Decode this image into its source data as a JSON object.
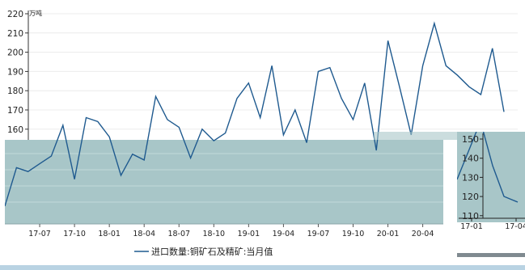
{
  "chart_data": {
    "type": "line",
    "unit": "万吨",
    "y_ticks": [
      220,
      210,
      200,
      190,
      180,
      170,
      160
    ],
    "ylim": [
      110,
      220
    ],
    "x_ticks": [
      "17-07",
      "17-10",
      "18-01",
      "18-04",
      "18-07",
      "18-10",
      "19-01",
      "19-04",
      "19-07",
      "19-10",
      "20-01",
      "20-04"
    ],
    "series": [
      {
        "name": "进口数量:铜矿石及精矿:当月值",
        "color": "#1f5a8f",
        "x": [
          "17-04",
          "17-05",
          "17-06",
          "17-07",
          "17-08",
          "17-09",
          "17-10",
          "17-11",
          "17-12",
          "18-01",
          "18-02",
          "18-03",
          "18-04",
          "18-05",
          "18-06",
          "18-07",
          "18-08",
          "18-09",
          "18-10",
          "18-11",
          "18-12",
          "19-01",
          "19-02",
          "19-03",
          "19-04",
          "19-05",
          "19-06",
          "19-07",
          "19-08",
          "19-09",
          "19-10",
          "19-11",
          "19-12",
          "20-01",
          "20-02",
          "20-03",
          "20-04",
          "20-05",
          "20-06",
          "20-07",
          "20-08",
          "20-09",
          "20-10",
          "20-11"
        ],
        "values": [
          120,
          140,
          138,
          142,
          146,
          162,
          134,
          166,
          164,
          156,
          136,
          147,
          144,
          177,
          165,
          161,
          145,
          160,
          154,
          158,
          176,
          184,
          166,
          193,
          157,
          170,
          153,
          190,
          192,
          176,
          165,
          184,
          149,
          206,
          182,
          157,
          193,
          215,
          193,
          188,
          182,
          178,
          202,
          169
        ]
      }
    ]
  },
  "overlay_axis": {
    "y_ticks": [
      150,
      140,
      130,
      120,
      110
    ],
    "x_ticks": [
      "17-01",
      "17-04"
    ]
  },
  "colors": {
    "panel": "#a8c6c8",
    "line": "#1f5a8f",
    "bottom_bar": "#b9d3e3"
  }
}
